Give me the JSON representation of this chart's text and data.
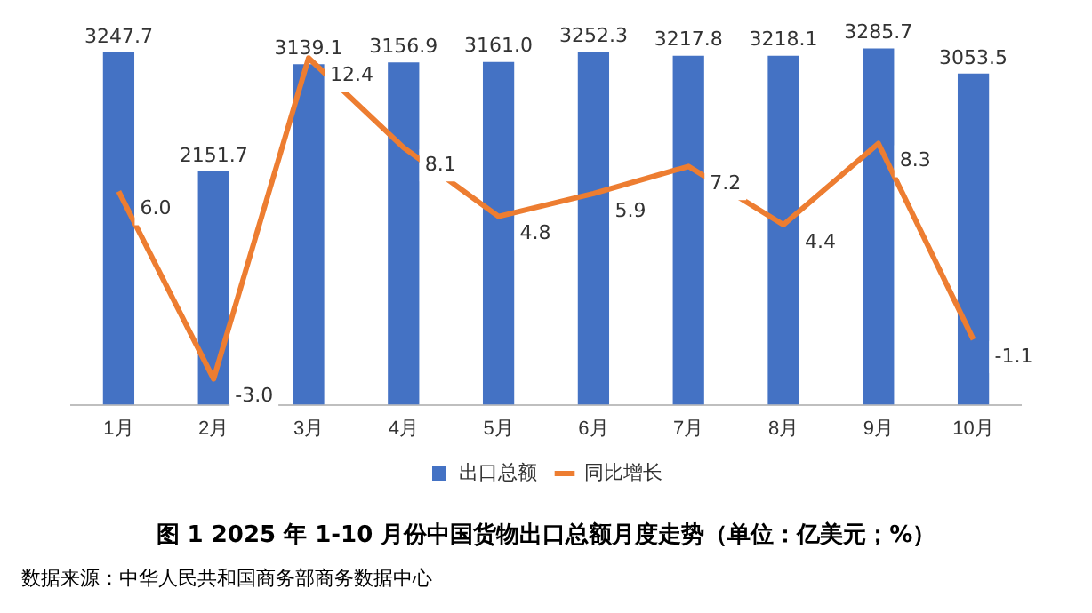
{
  "chart_data": {
    "type": "bar",
    "title": "图 1  2025 年 1-10 月份中国货物出口总额月度走势（单位：亿美元；%）",
    "annotations": [
      "数据来源：中华人民共和国商务部商务数据中心"
    ],
    "categories": [
      "1月",
      "2月",
      "3月",
      "4月",
      "5月",
      "6月",
      "7月",
      "8月",
      "9月",
      "10月"
    ],
    "series": [
      {
        "name": "出口总额",
        "color": "#4472c4",
        "values": [
          3247.7,
          2151.7,
          3139.1,
          3156.9,
          3161.0,
          3252.3,
          3217.8,
          3218.1,
          3285.7,
          3053.5
        ],
        "value_labels": [
          "3247.7",
          "2151.7",
          "3139.1",
          "3156.9",
          "3161.0",
          "3252.3",
          "3217.8",
          "3218.1",
          "3285.7",
          "3053.5"
        ]
      },
      {
        "name": "同比增长",
        "type": "line",
        "axis": "y2",
        "color": "#ed7d31",
        "values": [
          6.0,
          -3.0,
          12.4,
          8.1,
          4.8,
          5.9,
          7.2,
          4.4,
          8.3,
          -1.1
        ],
        "value_labels": [
          "6.0",
          "-3.0",
          "12.4",
          "8.1",
          "4.8",
          "5.9",
          "7.2",
          "4.4",
          "8.3",
          "-1.1"
        ]
      }
    ],
    "data_labels": true,
    "legend": "bottom",
    "grid": false,
    "marker": "none",
    "line_style": "solid"
  }
}
